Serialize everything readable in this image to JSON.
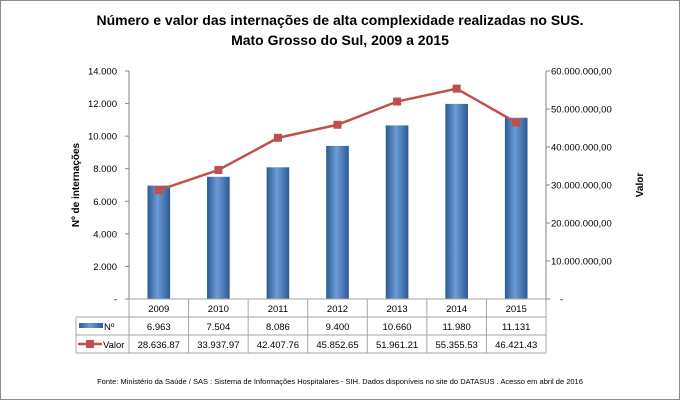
{
  "chart_data": {
    "type": "bar+line",
    "title": [
      "Número e valor das internações de alta complexidade realizadas no SUS.",
      "Mato Grosso do Sul, 2009 a 2015"
    ],
    "categories": [
      "2009",
      "2010",
      "2011",
      "2012",
      "2013",
      "2014",
      "2015"
    ],
    "series": [
      {
        "name": "Nº",
        "type": "bar",
        "axis": "left",
        "color": "#4f81bd",
        "values": [
          6963,
          7504,
          8086,
          9400,
          10660,
          11980,
          11131
        ],
        "labels": [
          "6.963",
          "7.504",
          "8.086",
          "9.400",
          "10.660",
          "11.980",
          "11.131"
        ]
      },
      {
        "name": "Valor",
        "type": "line",
        "axis": "right",
        "color": "#c0504d",
        "values": [
          28636870,
          33937970,
          42407760,
          45852650,
          51961210,
          55355530,
          46421430
        ],
        "labels": [
          "28.636.87",
          "33.937.97",
          "42.407.76",
          "45.852.65",
          "51.961.21",
          "55.355.53",
          "46.421.43"
        ]
      }
    ],
    "ylabel": "Nº de internações",
    "y2label": "Valor",
    "ylim": [
      0,
      14000
    ],
    "y2lim": [
      0,
      60000000
    ],
    "yticks": [
      "-",
      "2.000",
      "4.000",
      "6.000",
      "8.000",
      "10.000",
      "12.000",
      "14.000"
    ],
    "y2ticks": [
      "-",
      "10.000.000,00",
      "20.000.000,00",
      "30.000.000,00",
      "40.000.000,00",
      "50.000.000,00",
      "60.000.000,00"
    ],
    "grid": false,
    "legend": "data-table",
    "source": "Fonte:  Ministério da Saúde  / SAS : Sistema de Informações Hospitalares - SIH. Dados disponíveis no site do DATASUS . Acesso em abril de 2016"
  }
}
